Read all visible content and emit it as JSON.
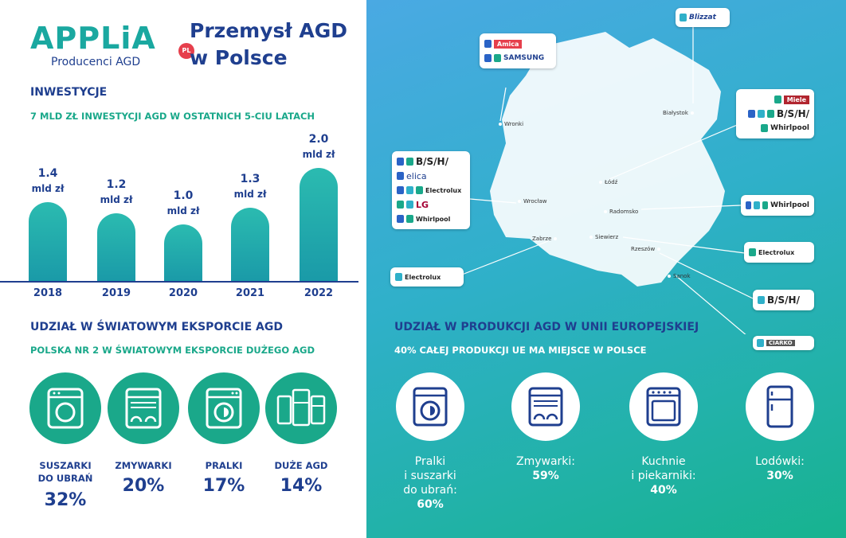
{
  "logo": {
    "word": "APPLiA",
    "sub": "Producenci AGD",
    "badge": "PL"
  },
  "title": "Przemysł AGD w Polsce",
  "investments": {
    "heading": "INWESTYCJE",
    "subheading": "7 MLD ZŁ INWESTYCJI AGD W OSTATNICH 5-CIU LATACH",
    "unit": "mld zł"
  },
  "chart_data": {
    "type": "bar",
    "categories": [
      "2018",
      "2019",
      "2020",
      "2021",
      "2022"
    ],
    "values": [
      1.4,
      1.2,
      1.0,
      1.3,
      2.0
    ],
    "value_labels": [
      "1.4",
      "1.2",
      "1.0",
      "1.3",
      "2.0"
    ],
    "title": "",
    "xlabel": "",
    "ylabel": "",
    "ylim": [
      0,
      2.0
    ]
  },
  "export": {
    "heading": "UDZIAŁ W ŚWIATOWYM EKSPORCIE AGD",
    "subheading": "POLSKA NR 2 W ŚWIATOWYM EKSPORCIE DUŻEGO AGD",
    "items": [
      {
        "label1": "SUSZARKI",
        "label2": "DO UBRAŃ",
        "value": "32%",
        "icon": "dryer-icon"
      },
      {
        "label1": "ZMYWARKI",
        "label2": "",
        "value": "20%",
        "icon": "dishwasher-icon"
      },
      {
        "label1": "PRALKI",
        "label2": "",
        "value": "17%",
        "icon": "washing-machine-icon"
      },
      {
        "label1": "DUŻE AGD",
        "label2": "",
        "value": "14%",
        "icon": "large-appliances-icon"
      }
    ]
  },
  "eu": {
    "heading": "UDZIAŁ W PRODUKCJI AGD W UNII EUROPEJSKIEJ",
    "subheading": "40% CAŁEJ PRODUKCJI UE MA MIEJSCE W POLSCE",
    "items": [
      {
        "lines": [
          "Pralki",
          "i suszarki",
          "do ubrań:"
        ],
        "value": "60%",
        "icon": "washing-machine-icon"
      },
      {
        "lines": [
          "Zmywarki:"
        ],
        "value": "59%",
        "icon": "dishwasher-icon"
      },
      {
        "lines": [
          "Kuchnie",
          "i piekarniki:"
        ],
        "value": "40%",
        "icon": "oven-icon"
      },
      {
        "lines": [
          "Lodówki:"
        ],
        "value": "30%",
        "icon": "fridge-icon"
      }
    ]
  },
  "map": {
    "cities": [
      "Wronki",
      "Białystok",
      "Łódź",
      "Wrocław",
      "Radomsko",
      "Zabrze",
      "Siewierz",
      "Rzeszów",
      "Sanok"
    ],
    "brands": {
      "amica": "Amica",
      "samsung": "SAMSUNG",
      "blizzat": "Blizzat",
      "miele": "Miele",
      "bsh": "B/S/H/",
      "whirlpool": "Whirlpool",
      "elica": "elica",
      "electrolux": "Electrolux",
      "lg": "LG",
      "ciarko": "CIARKO"
    }
  },
  "colors": {
    "navy": "#1f3f8f",
    "teal": "#1aa88a",
    "bg_gradient_start": "#4aa9e3",
    "bg_gradient_end": "#17b38f"
  }
}
